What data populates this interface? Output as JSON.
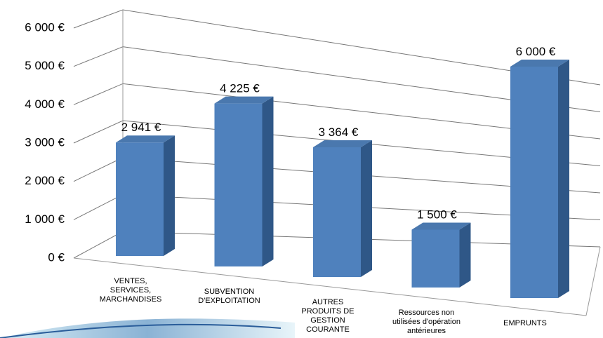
{
  "chart_data": {
    "type": "bar3d",
    "categories": [
      "VENTES,\nSERVICES,\nMARCHANDISES",
      "SUBVENTION\nD'EXPLOITATION",
      "AUTRES\nPRODUITS DE\nGESTION\nCOURANTE",
      "Ressources non\nutilisées d'opération\nantérieures",
      "EMPRUNTS"
    ],
    "values": [
      2941,
      4225,
      3364,
      1500,
      6000
    ],
    "value_labels": [
      "2 941 €",
      "4 225 €",
      "3 364 €",
      "1 500 €",
      "6 000 €"
    ],
    "color": "#4f81bd",
    "ylim": [
      0,
      6000
    ],
    "yticks": [
      {
        "value": 0,
        "label": "0 €"
      },
      {
        "value": 1000,
        "label": "1 000 €"
      },
      {
        "value": 2000,
        "label": "2 000 €"
      },
      {
        "value": 3000,
        "label": "3 000 €"
      },
      {
        "value": 4000,
        "label": "4 000 €"
      },
      {
        "value": 5000,
        "label": "5 000 €"
      },
      {
        "value": 6000,
        "label": "6 000 €"
      }
    ],
    "grid": true
  }
}
